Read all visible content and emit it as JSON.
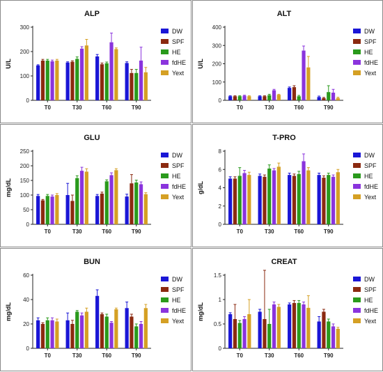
{
  "colors": {
    "DW": "#1a16d6",
    "SPF": "#8b2a10",
    "HE": "#2a9a1c",
    "fdHE": "#8a34dd",
    "Yext": "#d5a024"
  },
  "chart_data": [
    {
      "type": "bar",
      "title": "ALP",
      "ylabel": "U/L",
      "ylim": [
        0,
        300
      ],
      "yticks": [
        0,
        100,
        200,
        300
      ],
      "categories": [
        "T0",
        "T30",
        "T60",
        "T90"
      ],
      "series": [
        {
          "name": "DW",
          "values": [
            143,
            155,
            180,
            153
          ],
          "errors": [
            3,
            3,
            8,
            5
          ]
        },
        {
          "name": "SPF",
          "values": [
            163,
            158,
            148,
            112
          ],
          "errors": [
            5,
            4,
            5,
            15
          ]
        },
        {
          "name": "HE",
          "values": [
            163,
            170,
            152,
            112
          ],
          "errors": [
            5,
            8,
            5,
            15
          ]
        },
        {
          "name": "fdHE",
          "values": [
            160,
            212,
            238,
            163
          ],
          "errors": [
            5,
            8,
            38,
            55
          ]
        },
        {
          "name": "Yext",
          "values": [
            163,
            225,
            210,
            115
          ],
          "errors": [
            5,
            25,
            5,
            20
          ]
        }
      ]
    },
    {
      "type": "bar",
      "title": "ALT",
      "ylabel": "U/L",
      "ylim": [
        0,
        400
      ],
      "yticks": [
        0,
        100,
        200,
        300,
        400
      ],
      "categories": [
        "T0",
        "T30",
        "T60",
        "T90"
      ],
      "series": [
        {
          "name": "DW",
          "values": [
            22,
            22,
            68,
            18
          ],
          "errors": [
            3,
            3,
            5,
            5
          ]
        },
        {
          "name": "SPF",
          "values": [
            22,
            22,
            72,
            12
          ],
          "errors": [
            3,
            3,
            8,
            4
          ]
        },
        {
          "name": "HE",
          "values": [
            22,
            28,
            22,
            45
          ],
          "errors": [
            3,
            5,
            5,
            35
          ]
        },
        {
          "name": "fdHE",
          "values": [
            25,
            55,
            272,
            42
          ],
          "errors": [
            3,
            5,
            25,
            18
          ]
        },
        {
          "name": "Yext",
          "values": [
            22,
            30,
            180,
            12
          ],
          "errors": [
            3,
            3,
            60,
            5
          ]
        }
      ]
    },
    {
      "type": "bar",
      "title": "GLU",
      "ylabel": "mg/dL",
      "ylim": [
        0,
        250
      ],
      "yticks": [
        0,
        50,
        100,
        150,
        200,
        250
      ],
      "categories": [
        "T0",
        "T30",
        "T60",
        "T90"
      ],
      "series": [
        {
          "name": "DW",
          "values": [
            97,
            100,
            97,
            95
          ],
          "errors": [
            5,
            40,
            5,
            8
          ]
        },
        {
          "name": "SPF",
          "values": [
            82,
            80,
            105,
            140
          ],
          "errors": [
            3,
            20,
            5,
            30
          ]
        },
        {
          "name": "HE",
          "values": [
            97,
            158,
            147,
            143
          ],
          "errors": [
            5,
            8,
            5,
            8
          ]
        },
        {
          "name": "fdHE",
          "values": [
            95,
            183,
            168,
            137
          ],
          "errors": [
            5,
            12,
            8,
            8
          ]
        },
        {
          "name": "Yext",
          "values": [
            100,
            180,
            185,
            103
          ],
          "errors": [
            5,
            10,
            5,
            5
          ]
        }
      ]
    },
    {
      "type": "bar",
      "title": "T-PRO",
      "ylabel": "g/dL",
      "ylim": [
        0,
        8
      ],
      "yticks": [
        0,
        2,
        4,
        6,
        8
      ],
      "categories": [
        "T0",
        "T30",
        "T60",
        "T90"
      ],
      "series": [
        {
          "name": "DW",
          "values": [
            5.0,
            5.3,
            5.4,
            5.4
          ],
          "errors": [
            0.2,
            0.2,
            0.2,
            0.2
          ]
        },
        {
          "name": "SPF",
          "values": [
            5.0,
            5.2,
            5.3,
            5.1
          ],
          "errors": [
            0.2,
            0.2,
            0.2,
            0.2
          ]
        },
        {
          "name": "HE",
          "values": [
            5.3,
            6.1,
            5.5,
            5.4
          ],
          "errors": [
            0.9,
            0.4,
            0.3,
            0.2
          ]
        },
        {
          "name": "fdHE",
          "values": [
            5.6,
            5.9,
            6.9,
            5.2
          ],
          "errors": [
            0.3,
            0.2,
            0.8,
            0.2
          ]
        },
        {
          "name": "Yext",
          "values": [
            5.4,
            6.3,
            5.9,
            5.7
          ],
          "errors": [
            0.3,
            0.4,
            0.3,
            0.3
          ]
        }
      ]
    },
    {
      "type": "bar",
      "title": "BUN",
      "ylabel": "mg/dL",
      "ylim": [
        0,
        60
      ],
      "yticks": [
        0,
        20,
        40,
        60
      ],
      "categories": [
        "T0",
        "T30",
        "T60",
        "T90"
      ],
      "series": [
        {
          "name": "DW",
          "values": [
            23,
            23,
            43,
            33
          ],
          "errors": [
            2,
            6,
            5,
            5
          ]
        },
        {
          "name": "SPF",
          "values": [
            20,
            20,
            28,
            26
          ],
          "errors": [
            1,
            3,
            1,
            2
          ]
        },
        {
          "name": "HE",
          "values": [
            23,
            30,
            26,
            18
          ],
          "errors": [
            2,
            1,
            2,
            2
          ]
        },
        {
          "name": "fdHE",
          "values": [
            23,
            27,
            21,
            20
          ],
          "errors": [
            2,
            2,
            1,
            2
          ]
        },
        {
          "name": "Yext",
          "values": [
            22,
            30,
            32,
            33
          ],
          "errors": [
            2,
            3,
            1,
            3
          ]
        }
      ]
    },
    {
      "type": "bar",
      "title": "CREAT",
      "ylabel": "mg/dL",
      "ylim": [
        0,
        1.5
      ],
      "yticks": [
        0,
        0.5,
        1.0,
        1.5
      ],
      "categories": [
        "T0",
        "T30",
        "T60",
        "T90"
      ],
      "series": [
        {
          "name": "DW",
          "values": [
            0.7,
            0.75,
            0.9,
            0.55
          ],
          "errors": [
            0.03,
            0.05,
            0.03,
            0.1
          ]
        },
        {
          "name": "SPF",
          "values": [
            0.6,
            0.6,
            0.93,
            0.75
          ],
          "errors": [
            0.3,
            1.0,
            0.05,
            0.05
          ]
        },
        {
          "name": "HE",
          "values": [
            0.52,
            0.5,
            0.93,
            0.55
          ],
          "errors": [
            0.05,
            0.3,
            0.05,
            0.05
          ]
        },
        {
          "name": "fdHE",
          "values": [
            0.6,
            0.9,
            0.9,
            0.45
          ],
          "errors": [
            0.05,
            0.05,
            0.05,
            0.05
          ]
        },
        {
          "name": "Yext",
          "values": [
            0.7,
            0.85,
            0.83,
            0.4
          ],
          "errors": [
            0.3,
            0.05,
            0.25,
            0.03
          ]
        }
      ]
    }
  ]
}
